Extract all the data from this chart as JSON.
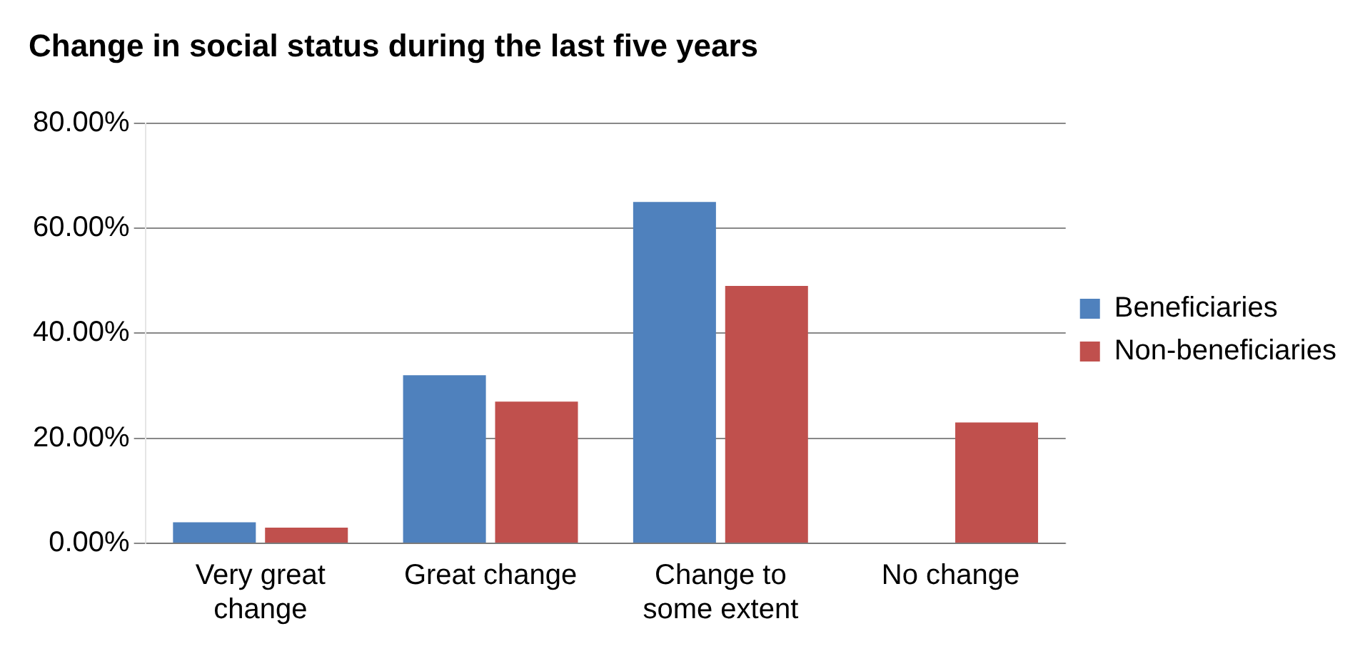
{
  "chart_data": {
    "type": "bar",
    "title": "Change in social status during the last five years",
    "categories": [
      "Very great change",
      "Great change",
      "Change to some extent",
      "No change"
    ],
    "series": [
      {
        "name": "Beneficiaries",
        "color": "#4f81bd",
        "values": [
          4,
          32,
          65,
          0
        ]
      },
      {
        "name": "Non-beneficiaries",
        "color": "#c0504d",
        "values": [
          3,
          27,
          49,
          23
        ]
      }
    ],
    "ylim": [
      0,
      80
    ],
    "yticks": [
      {
        "value": 0,
        "label": "0.00%"
      },
      {
        "value": 20,
        "label": "20.00%"
      },
      {
        "value": 40,
        "label": "40.00%"
      },
      {
        "value": 60,
        "label": "60.00%"
      },
      {
        "value": 80,
        "label": "80.00%"
      }
    ],
    "grid": "y",
    "legend": "right"
  }
}
